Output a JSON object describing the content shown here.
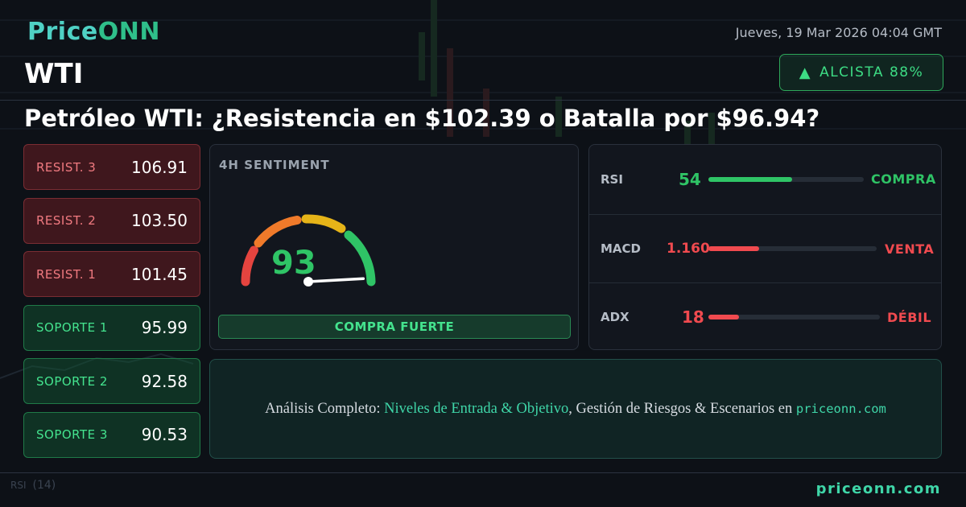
{
  "brand": {
    "part1": "Price",
    "part2": "ONN"
  },
  "header": {
    "datetime": "Jueves, 19 Mar 2026 04:04 GMT",
    "symbol": "WTI",
    "trend": {
      "icon": "triangle-up-icon",
      "glyph": "▲",
      "label": "ALCISTA 88%"
    }
  },
  "headline": "Petróleo WTI: ¿Resistencia en $102.39 o Batalla por $96.94?",
  "levels": [
    {
      "label": "RESIST. 3",
      "value": "106.91",
      "type": "resistance"
    },
    {
      "label": "RESIST. 2",
      "value": "103.50",
      "type": "resistance"
    },
    {
      "label": "RESIST. 1",
      "value": "101.45",
      "type": "resistance"
    },
    {
      "label": "SOPORTE 1",
      "value": "95.99",
      "type": "support"
    },
    {
      "label": "SOPORTE 2",
      "value": "92.58",
      "type": "support"
    },
    {
      "label": "SOPORTE 3",
      "value": "90.53",
      "type": "support"
    }
  ],
  "sentiment": {
    "title": "4H SENTIMENT",
    "value": "93",
    "gauge_fraction": 0.93,
    "label": "COMPRA FUERTE"
  },
  "indicators": [
    {
      "name": "RSI",
      "value": "54",
      "fill_fraction": 0.54,
      "signal": "COMPRA",
      "color": "#2fc466"
    },
    {
      "name": "MACD",
      "value": "1.160",
      "fill_fraction": 0.3,
      "signal": "VENTA",
      "color": "#f04a4f"
    },
    {
      "name": "ADX",
      "value": "18",
      "fill_fraction": 0.18,
      "signal": "DÉBIL",
      "color": "#f04a4f"
    }
  ],
  "banner": {
    "prefix": "Análisis Completo:",
    "highlight": "Niveles de Entrada & Objetivo",
    "middle": ", Gestión de Riesgos & Escenarios en",
    "site": "priceonn.com"
  },
  "footer": {
    "site": "priceonn.com",
    "bg_indicator_label": "RSI",
    "bg_indicator_period": "(14)"
  },
  "colors": {
    "accent": "#3fd6a8",
    "bullish": "#2fc466",
    "bearish": "#f04a4f",
    "background": "#0d1117"
  }
}
